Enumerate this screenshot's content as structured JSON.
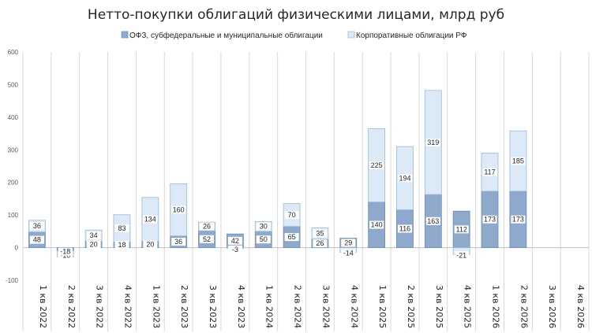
{
  "chart_data": {
    "type": "bar",
    "stacked": true,
    "title": "Нетто-покупки облигаций физическими лицами, млрд руб",
    "xlabel": "",
    "ylabel": "",
    "ylim": [
      -100,
      600
    ],
    "yticks": [
      -100,
      0,
      100,
      200,
      300,
      400,
      500,
      600
    ],
    "grid": "vertical-category-lines",
    "legend_position": "top",
    "categories": [
      "1 кв 2022",
      "2 кв 2022",
      "3 кв 2022",
      "4 кв 2022",
      "1 кв 2023",
      "2 кв 2023",
      "3 кв 2023",
      "4 кв 2023",
      "1 кв 2024",
      "2 кв 2024",
      "3 кв 2024",
      "4 кв 2024",
      "1 кв 2025",
      "2 кв 2025",
      "3 кв 2025",
      "4 кв 2025",
      "1 кв 2026",
      "2 кв 2026",
      "3 кв 2026",
      "4 кв 2026"
    ],
    "series": [
      {
        "name": "ОФЗ, субфедеральные и муниципальные облигации",
        "color": "#8fa9cc",
        "values": [
          48,
          -10,
          20,
          18,
          20,
          36,
          52,
          42,
          50,
          65,
          26,
          29,
          140,
          116,
          163,
          112,
          173,
          173,
          null,
          null
        ],
        "labels": [
          "48",
          "-10",
          "20",
          "18",
          "20",
          "36",
          "52",
          "42",
          "50",
          "65",
          "26",
          "29",
          "140",
          "116",
          "163",
          "112",
          "173",
          "173",
          "",
          ""
        ]
      },
      {
        "name": "Корпоративные облигации РФ",
        "color": "#dce9f6",
        "values": [
          36,
          -18,
          34,
          83,
          134,
          160,
          26,
          -3,
          30,
          70,
          35,
          -14,
          225,
          194,
          319,
          -21,
          117,
          185,
          null,
          null
        ],
        "labels": [
          "36",
          "-18",
          "34",
          "83",
          "134",
          "160",
          "26",
          "-3",
          "30",
          "70",
          "35",
          "-14",
          "225",
          "194",
          "319",
          "-21",
          "117",
          "185",
          "",
          ""
        ]
      }
    ]
  }
}
